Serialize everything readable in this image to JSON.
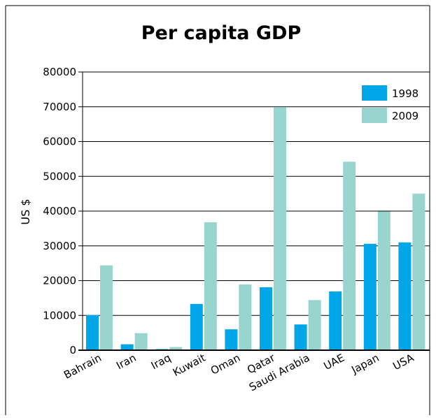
{
  "chart_data": {
    "type": "bar",
    "title": "Per capita GDP",
    "ylabel": "US $",
    "xlabel": "",
    "ylim": [
      0,
      80000
    ],
    "yticks": [
      0,
      10000,
      20000,
      30000,
      40000,
      50000,
      60000,
      70000,
      80000
    ],
    "categories": [
      "Bahrain",
      "Iran",
      "Iraq",
      "Kuwait",
      "Oman",
      "Qatar",
      "Saudi Arabia",
      "UAE",
      "Japan",
      "USA"
    ],
    "series": [
      {
        "name": "1998",
        "color": "#00a6e8",
        "values": [
          10100,
          1700,
          300,
          13300,
          6000,
          18100,
          7400,
          16900,
          30600,
          31000
        ]
      },
      {
        "name": "2009",
        "color": "#99d5cf",
        "values": [
          24400,
          4900,
          900,
          36800,
          18900,
          69900,
          14400,
          54200,
          39900,
          45000
        ]
      }
    ],
    "grid": true,
    "legend": "top-right"
  }
}
